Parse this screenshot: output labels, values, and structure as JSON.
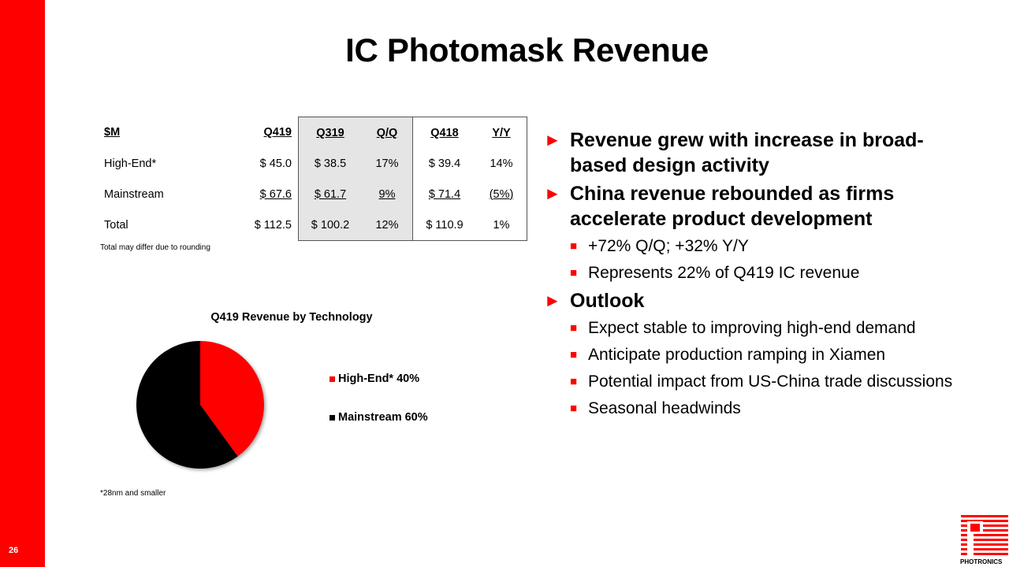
{
  "slide": {
    "title": "IC Photomask Revenue",
    "page_number": "26",
    "logo_text": "PHOTRONICS"
  },
  "table": {
    "header": [
      "$M",
      "Q419",
      "Q319",
      "Q/Q",
      "Q418",
      "Y/Y"
    ],
    "rows": [
      [
        "High-End*",
        "$ 45.0",
        "$ 38.5",
        "17%",
        "$ 39.4",
        "14%"
      ],
      [
        "Mainstream",
        "$ 67.6",
        "$ 61.7",
        "9%",
        "$ 71.4",
        "(5%)"
      ],
      [
        "Total",
        "$ 112.5",
        "$ 100.2",
        "12%",
        "$ 110.9",
        "1%"
      ]
    ],
    "note": "Total may differ due to rounding"
  },
  "chart_data": {
    "type": "pie",
    "title": "Q419 Revenue by Technology",
    "categories": [
      "High-End*",
      "Mainstream"
    ],
    "values": [
      40,
      60
    ],
    "legend_labels": [
      "High-End* 40%",
      "Mainstream 60%"
    ],
    "colors": [
      "#ff0000",
      "#000000"
    ],
    "legend": "right"
  },
  "footnote": "*28nm and smaller",
  "bullets": [
    {
      "text": "Revenue grew with increase in broad-based design activity",
      "sub": []
    },
    {
      "text": "China revenue rebounded as firms accelerate product development",
      "sub": [
        "+72% Q/Q; +32% Y/Y",
        "Represents 22% of Q419 IC revenue"
      ]
    },
    {
      "text": "Outlook",
      "sub": [
        "Expect stable to improving high-end demand",
        "Anticipate production ramping in Xiamen",
        "Potential impact from US-China trade discussions",
        "Seasonal headwinds"
      ]
    }
  ],
  "colors": {
    "accent": "#ff0000",
    "table_shade": "#e5e5e5"
  },
  "icons": {
    "bullet_level1": "triangle-right",
    "bullet_level2": "small-square"
  }
}
